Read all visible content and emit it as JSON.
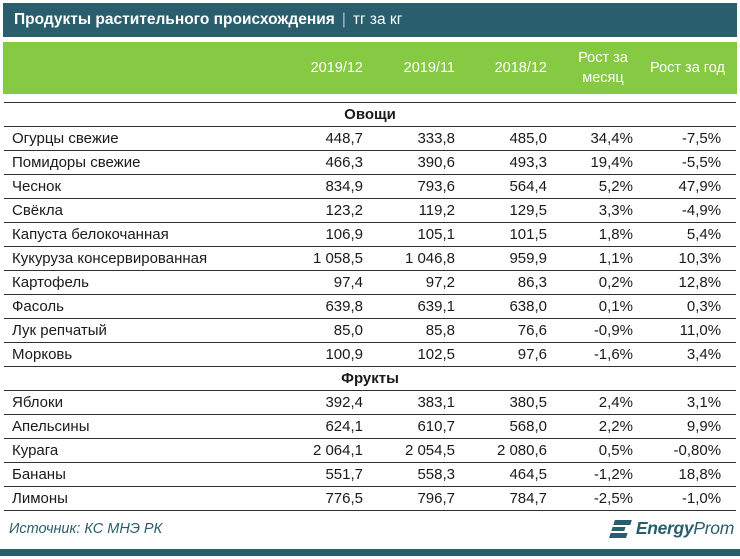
{
  "chart_data": {
    "type": "table",
    "title": "Продукты растительного происхождения",
    "title_separator": "|",
    "unit": "тг за кг",
    "columns": [
      "2019/12",
      "2019/11",
      "2018/12",
      "Рост за месяц",
      "Рост за год"
    ],
    "sections": [
      {
        "label": "Овощи",
        "rows": [
          [
            "Огурцы свежие",
            "448,7",
            "333,8",
            "485,0",
            "34,4%",
            "-7,5%"
          ],
          [
            "Помидоры свежие",
            "466,3",
            "390,6",
            "493,3",
            "19,4%",
            "-5,5%"
          ],
          [
            "Чеснок",
            "834,9",
            "793,6",
            "564,4",
            "5,2%",
            "47,9%"
          ],
          [
            "Свёкла",
            "123,2",
            "119,2",
            "129,5",
            "3,3%",
            "-4,9%"
          ],
          [
            "Капуста белокочанная",
            "106,9",
            "105,1",
            "101,5",
            "1,8%",
            "5,4%"
          ],
          [
            "Кукуруза консервированная",
            "1 058,5",
            "1 046,8",
            "959,9",
            "1,1%",
            "10,3%"
          ],
          [
            "Картофель",
            "97,4",
            "97,2",
            "86,3",
            "0,2%",
            "12,8%"
          ],
          [
            "Фасоль",
            "639,8",
            "639,1",
            "638,0",
            "0,1%",
            "0,3%"
          ],
          [
            "Лук репчатый",
            "85,0",
            "85,8",
            "76,6",
            "-0,9%",
            "11,0%"
          ],
          [
            "Морковь",
            "100,9",
            "102,5",
            "97,6",
            "-1,6%",
            "3,4%"
          ]
        ]
      },
      {
        "label": "Фрукты",
        "rows": [
          [
            "Яблоки",
            "392,4",
            "383,1",
            "380,5",
            "2,4%",
            "3,1%"
          ],
          [
            "Апельсины",
            "624,1",
            "610,7",
            "568,0",
            "2,2%",
            "9,9%"
          ],
          [
            "Курага",
            "2 064,1",
            "2 054,5",
            "2 080,6",
            "0,5%",
            "-0,80%"
          ],
          [
            "Бананы",
            "551,7",
            "558,3",
            "464,5",
            "-1,2%",
            "18,8%"
          ],
          [
            "Лимоны",
            "776,5",
            "796,7",
            "784,7",
            "-2,5%",
            "-1,0%"
          ]
        ]
      }
    ],
    "source": "Источник: КС МНЭ РК",
    "brand": {
      "bold": "Energy",
      "light": "Prom"
    }
  },
  "colors": {
    "teal": "#295e6d",
    "green": "#86c943",
    "row_border": "#303030",
    "text": "#1a1a1a",
    "header_text": "#ffffff"
  }
}
